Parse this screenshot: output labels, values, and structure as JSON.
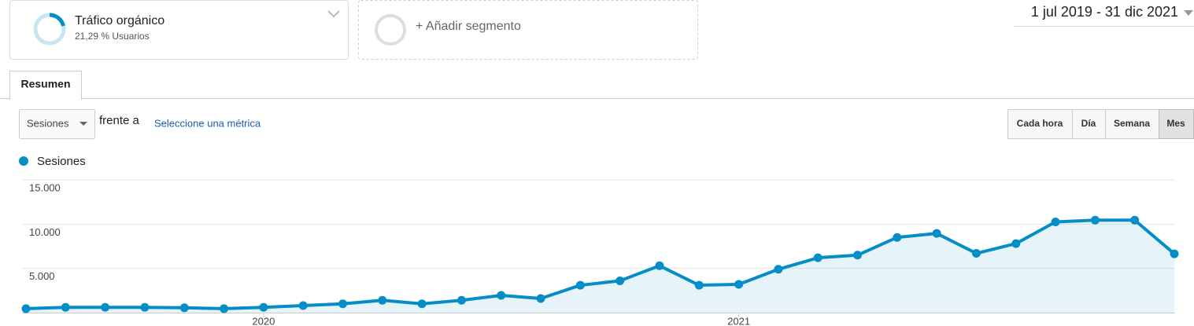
{
  "segment": {
    "title": "Tráfico orgánico",
    "subtitle": "21,29 % Usuarios"
  },
  "add_segment": "+ Añadir segmento",
  "date_range": "1 jul 2019 - 31 dic 2021",
  "tab": "Resumen",
  "metric_select": "Sesiones",
  "versus": "frente a",
  "select_metric": "Seleccione una métrica",
  "granularity": [
    "Cada hora",
    "Día",
    "Semana",
    "Mes"
  ],
  "chart_data": {
    "type": "line",
    "categories": [
      null,
      null,
      null,
      null,
      null,
      null,
      "2020",
      null,
      null,
      null,
      null,
      null,
      null,
      null,
      null,
      null,
      null,
      null,
      "2021",
      null,
      null,
      null,
      null,
      null,
      null,
      null,
      null,
      null,
      null,
      null
    ],
    "series": [
      {
        "name": "Sesiones",
        "color": "#058dc7",
        "values": [
          450,
          600,
          600,
          600,
          550,
          450,
          600,
          800,
          1000,
          1400,
          1000,
          1400,
          1950,
          1600,
          3100,
          3600,
          5300,
          3100,
          3200,
          4900,
          6200,
          6500,
          8500,
          8950,
          6700,
          7800,
          10250,
          10450,
          10450,
          6650
        ]
      }
    ],
    "ylim": [
      0,
      15000
    ],
    "yticks": [
      {
        "value": 5000,
        "label": "5.000"
      },
      {
        "value": 10000,
        "label": "10.000"
      },
      {
        "value": 15000,
        "label": "15.000"
      }
    ],
    "grid": true
  }
}
